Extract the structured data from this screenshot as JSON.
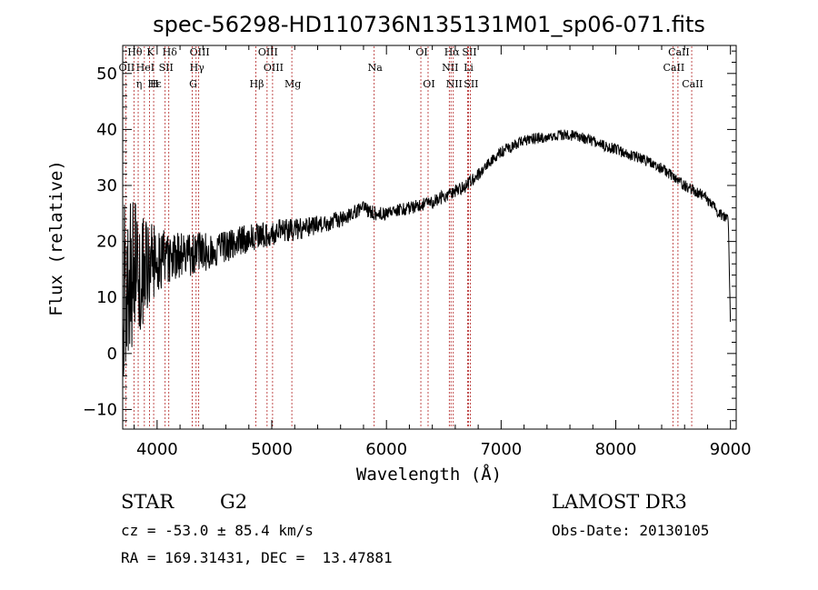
{
  "chart_data": {
    "type": "line",
    "title": "spec-56298-HD110736N135131M01_sp06-071.fits",
    "xlabel": "Wavelength (Å)",
    "ylabel": "Flux (relative)",
    "xlim": [
      3700,
      9050
    ],
    "ylim": [
      -13.5,
      55
    ],
    "xticks": [
      4000,
      5000,
      6000,
      7000,
      8000,
      9000
    ],
    "yticks": [
      -10,
      0,
      10,
      20,
      30,
      40,
      50
    ],
    "grid": false,
    "series": [
      {
        "name": "flux",
        "anchors_x": [
          3700,
          3720,
          3760,
          3800,
          3850,
          3900,
          3950,
          4000,
          4100,
          4200,
          4300,
          4400,
          4500,
          4600,
          4700,
          4800,
          4900,
          5000,
          5100,
          5200,
          5300,
          5400,
          5500,
          5600,
          5700,
          5800,
          5900,
          6000,
          6100,
          6200,
          6300,
          6400,
          6500,
          6600,
          6700,
          6800,
          6900,
          7000,
          7100,
          7200,
          7300,
          7400,
          7500,
          7600,
          7700,
          7800,
          7900,
          8000,
          8100,
          8200,
          8300,
          8400,
          8500,
          8600,
          8700,
          8800,
          8900,
          8980,
          9000
        ],
        "anchors_y": [
          8,
          13,
          14,
          15,
          15,
          15,
          16,
          17,
          17,
          17,
          17.5,
          18,
          18.5,
          19,
          20,
          20.5,
          21,
          21.5,
          22,
          22,
          22.5,
          23,
          23.5,
          24,
          25,
          26,
          25,
          25,
          25.5,
          26,
          26.5,
          27,
          28,
          29,
          30,
          32,
          34,
          36,
          37,
          38,
          38.5,
          38.5,
          39,
          39,
          38.5,
          38,
          37,
          36.5,
          35.5,
          35,
          34,
          33,
          31.5,
          30,
          29,
          27.5,
          25,
          24,
          5
        ],
        "noise_amplitude": [
          16,
          14,
          9,
          6,
          5,
          4.5,
          4,
          3.5,
          3,
          2.5,
          2,
          1.5,
          1.2,
          1.2,
          1,
          1,
          1
        ],
        "noise_amplitude_x": [
          3700,
          3800,
          3900,
          4000,
          4100,
          4200,
          4300,
          4400,
          4500,
          4800,
          5200,
          5600,
          6000,
          6500,
          7000,
          8000,
          9000
        ]
      }
    ],
    "line_markers": [
      {
        "label": "Hθ",
        "x": 3798,
        "row": 0
      },
      {
        "label": "K",
        "x": 3934,
        "row": 0
      },
      {
        "label": "Hδ",
        "x": 4102,
        "row": 0
      },
      {
        "label": "OIII",
        "x": 4363,
        "row": 0
      },
      {
        "label": "OIII",
        "x": 4959,
        "row": 0
      },
      {
        "label": "OI",
        "x": 6300,
        "row": 0
      },
      {
        "label": "Hα",
        "x": 6563,
        "row": 0
      },
      {
        "label": "SII",
        "x": 6716,
        "row": 0
      },
      {
        "label": "CaII",
        "x": 8542,
        "row": 0
      },
      {
        "label": "OII",
        "x": 3727,
        "row": 1
      },
      {
        "label": "HeI",
        "x": 3889,
        "row": 1
      },
      {
        "label": "SII",
        "x": 4070,
        "row": 1
      },
      {
        "label": "Hγ",
        "x": 4340,
        "row": 1
      },
      {
        "label": "OIII",
        "x": 5007,
        "row": 1
      },
      {
        "label": "Na",
        "x": 5893,
        "row": 1
      },
      {
        "label": "NII",
        "x": 6548,
        "row": 1
      },
      {
        "label": "Li",
        "x": 6708,
        "row": 1
      },
      {
        "label": "CaII",
        "x": 8498,
        "row": 1
      },
      {
        "label": "Hε",
        "x": 3970,
        "row": 2
      },
      {
        "label": "η",
        "x": 3835,
        "row": 2
      },
      {
        "label": "H",
        "x": 3968,
        "row": 2
      },
      {
        "label": "G",
        "x": 4307,
        "row": 2
      },
      {
        "label": "Hβ",
        "x": 4861,
        "row": 2
      },
      {
        "label": "Mg",
        "x": 5175,
        "row": 2
      },
      {
        "label": "OI",
        "x": 6363,
        "row": 2
      },
      {
        "label": "NII",
        "x": 6583,
        "row": 2
      },
      {
        "label": "SII",
        "x": 6731,
        "row": 2
      },
      {
        "label": "CaII",
        "x": 8662,
        "row": 2
      }
    ]
  },
  "info": {
    "object_type": "STAR",
    "subclass": "G2",
    "survey": "LAMOST DR3",
    "redshift": "cz = -53.0 ± 85.4 km/s",
    "obs_date": "Obs-Date: 20130105",
    "coords": "RA = 169.31431, DEC =  13.47881"
  },
  "colors": {
    "line": "#000000",
    "marker": "#b22222",
    "axes": "#000000"
  }
}
